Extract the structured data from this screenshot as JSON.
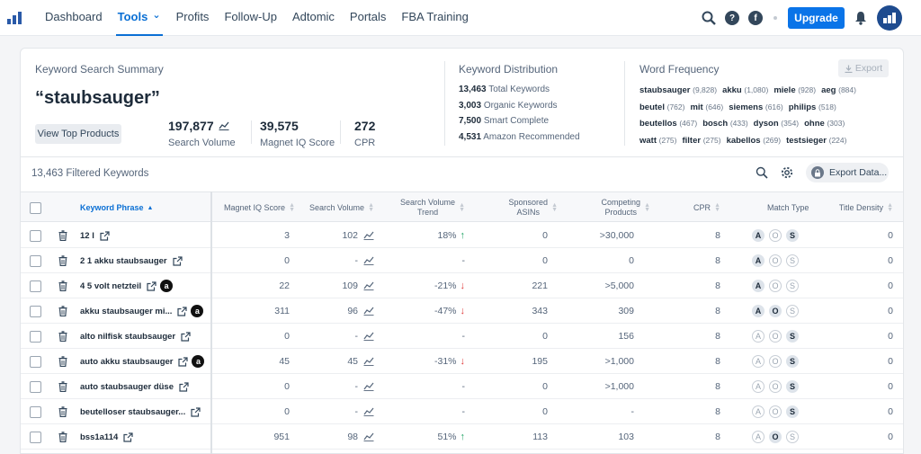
{
  "nav": {
    "items": [
      "Dashboard",
      "Tools",
      "Profits",
      "Follow-Up",
      "Adtomic",
      "Portals",
      "FBA Training"
    ],
    "active": "Tools",
    "upgrade_label": "Upgrade",
    "facebook_glyph": "f",
    "help_glyph": "?"
  },
  "summary": {
    "title": "Keyword Search Summary",
    "keyword": "“staubsauger”",
    "view_top_products": "View Top Products",
    "search_volume": "197,877",
    "search_volume_label": "Search Volume",
    "iq_score": "39,575",
    "iq_score_label": "Magnet IQ Score",
    "cpr": "272",
    "cpr_label": "CPR"
  },
  "distribution": {
    "title": "Keyword Distribution",
    "items": [
      {
        "value": "13,463",
        "label": "Total Keywords"
      },
      {
        "value": "3,003",
        "label": "Organic Keywords"
      },
      {
        "value": "7,500",
        "label": "Smart Complete"
      },
      {
        "value": "4,531",
        "label": "Amazon Recommended"
      }
    ]
  },
  "word_frequency": {
    "title": "Word Frequency",
    "export_label": "Export",
    "rows": [
      [
        {
          "w": "staubsauger",
          "n": "(9,828)"
        },
        {
          "w": "akku",
          "n": "(1,080)"
        },
        {
          "w": "miele",
          "n": "(928)"
        },
        {
          "w": "aeg",
          "n": "(884)"
        }
      ],
      [
        {
          "w": "beutel",
          "n": "(762)"
        },
        {
          "w": "mit",
          "n": "(646)"
        },
        {
          "w": "siemens",
          "n": "(616)"
        },
        {
          "w": "philips",
          "n": "(518)"
        }
      ],
      [
        {
          "w": "beutellos",
          "n": "(467)"
        },
        {
          "w": "bosch",
          "n": "(433)"
        },
        {
          "w": "dyson",
          "n": "(354)"
        },
        {
          "w": "ohne",
          "n": "(303)"
        }
      ],
      [
        {
          "w": "watt",
          "n": "(275)"
        },
        {
          "w": "filter",
          "n": "(275)"
        },
        {
          "w": "kabellos",
          "n": "(269)"
        },
        {
          "w": "testsieger",
          "n": "(224)"
        }
      ]
    ]
  },
  "table": {
    "filtered_label": "13,463 Filtered Keywords",
    "export_data_label": "Export Data...",
    "headers": {
      "keyword": "Keyword Phrase",
      "iq": "Magnet IQ Score",
      "sv": "Search Volume",
      "trend_1": "Search Volume",
      "trend_2": "Trend",
      "sponsored_1": "Sponsored",
      "sponsored_2": "ASINs",
      "competing_1": "Competing",
      "competing_2": "Products",
      "cpr": "CPR",
      "match": "Match Type",
      "density": "Title Density"
    },
    "rows": [
      {
        "kw": "12 l",
        "amazon": false,
        "iq": "3",
        "sv": "102",
        "chart": true,
        "trend": "18%",
        "dir": "up",
        "sponsored": "0",
        "competing": ">30,000",
        "cpr": "8",
        "match": [
          "A",
          "S"
        ],
        "density": "0"
      },
      {
        "kw": "2 1 akku staubsauger",
        "amazon": false,
        "iq": "0",
        "sv": "-",
        "chart": false,
        "trend": "-",
        "dir": "",
        "sponsored": "0",
        "competing": "0",
        "cpr": "8",
        "match": [
          "A"
        ],
        "density": "0"
      },
      {
        "kw": "4 5 volt netzteil",
        "amazon": true,
        "iq": "22",
        "sv": "109",
        "chart": true,
        "trend": "-21%",
        "dir": "down",
        "sponsored": "221",
        "competing": ">5,000",
        "cpr": "8",
        "match": [
          "A"
        ],
        "density": "0"
      },
      {
        "kw": "akku staubsauger mi...",
        "amazon": true,
        "iq": "311",
        "sv": "96",
        "chart": true,
        "trend": "-47%",
        "dir": "down",
        "sponsored": "343",
        "competing": "309",
        "cpr": "8",
        "match": [
          "A",
          "O"
        ],
        "density": "0"
      },
      {
        "kw": "alto nilfisk staubsauger",
        "amazon": false,
        "iq": "0",
        "sv": "-",
        "chart": false,
        "trend": "-",
        "dir": "",
        "sponsored": "0",
        "competing": "156",
        "cpr": "8",
        "match": [
          "S"
        ],
        "density": "0"
      },
      {
        "kw": "auto akku staubsauger",
        "amazon": true,
        "iq": "45",
        "sv": "45",
        "chart": true,
        "trend": "-31%",
        "dir": "down",
        "sponsored": "195",
        "competing": ">1,000",
        "cpr": "8",
        "match": [
          "S"
        ],
        "density": "0"
      },
      {
        "kw": "auto staubsauger düse",
        "amazon": false,
        "iq": "0",
        "sv": "-",
        "chart": false,
        "trend": "-",
        "dir": "",
        "sponsored": "0",
        "competing": ">1,000",
        "cpr": "8",
        "match": [
          "S"
        ],
        "density": "0"
      },
      {
        "kw": "beutelloser staubsauger...",
        "amazon": false,
        "iq": "0",
        "sv": "-",
        "chart": false,
        "trend": "-",
        "dir": "",
        "sponsored": "0",
        "competing": "-",
        "cpr": "8",
        "match": [
          "S"
        ],
        "density": "0"
      },
      {
        "kw": "bss1a114",
        "amazon": false,
        "iq": "951",
        "sv": "98",
        "chart": true,
        "trend": "51%",
        "dir": "up",
        "sponsored": "113",
        "competing": "103",
        "cpr": "8",
        "match": [
          "O"
        ],
        "density": "0"
      }
    ]
  }
}
